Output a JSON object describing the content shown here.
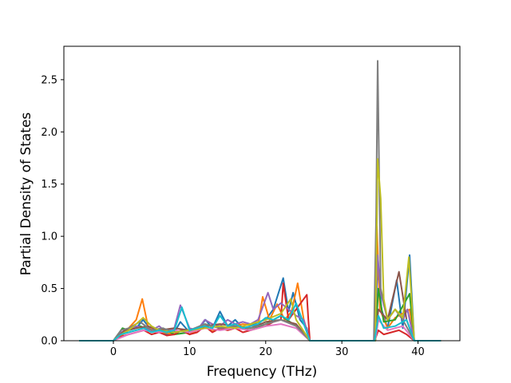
{
  "chart_data": {
    "type": "line",
    "title": "",
    "xlabel": "Frequency (THz)",
    "ylabel": "Partial Density of States",
    "xlim": [
      -6.5,
      45.5
    ],
    "ylim": [
      0,
      2.82
    ],
    "xticks": [
      0,
      10,
      20,
      30,
      40
    ],
    "xtick_labels": [
      "0",
      "10",
      "20",
      "30",
      "40"
    ],
    "yticks": [
      0,
      0.5,
      1.0,
      1.5,
      2.0,
      2.5
    ],
    "ytick_labels": [
      "0.0",
      "0.5",
      "1.0",
      "1.5",
      "2.0",
      "2.5"
    ],
    "grid": false,
    "legend": "none",
    "series": [
      {
        "color": "#1f77b4",
        "x": [
          -4.5,
          0,
          1,
          2,
          3,
          3.9,
          5,
          6,
          7,
          8,
          8.8,
          10,
          11,
          12.1,
          13,
          14,
          15,
          16,
          17,
          18,
          19,
          20,
          21,
          22.3,
          23,
          23.6,
          24.5,
          25.4,
          25.8,
          30,
          34.3,
          34.7,
          35.2,
          36,
          37.2,
          38,
          38.9,
          39.5,
          43
        ],
        "y": [
          0,
          0,
          0.06,
          0.1,
          0.12,
          0.2,
          0.1,
          0.08,
          0.06,
          0.08,
          0.18,
          0.08,
          0.1,
          0.2,
          0.12,
          0.28,
          0.14,
          0.2,
          0.12,
          0.14,
          0.18,
          0.2,
          0.3,
          0.6,
          0.28,
          0.46,
          0.2,
          0.12,
          0,
          0,
          0,
          0.7,
          0.3,
          0.12,
          0.58,
          0.12,
          0.82,
          0,
          0
        ]
      },
      {
        "color": "#ff7f0e",
        "x": [
          -4.5,
          0,
          1,
          2,
          3,
          3.8,
          4.6,
          5.5,
          6.5,
          8,
          8.8,
          10,
          12,
          13,
          15,
          17,
          19,
          19.6,
          20.5,
          21.5,
          22.5,
          23.4,
          24.2,
          25,
          25.8,
          30,
          34.3,
          34.6,
          35,
          36,
          37,
          38.9,
          39.5,
          43
        ],
        "y": [
          0,
          0,
          0.04,
          0.12,
          0.2,
          0.4,
          0.12,
          0.1,
          0.08,
          0.06,
          0.1,
          0.06,
          0.14,
          0.1,
          0.12,
          0.16,
          0.14,
          0.42,
          0.2,
          0.35,
          0.2,
          0.28,
          0.55,
          0.2,
          0,
          0,
          0,
          1.1,
          0.3,
          0.12,
          0.22,
          0.3,
          0,
          0
        ]
      },
      {
        "color": "#2ca02c",
        "x": [
          -4.5,
          0,
          1.2,
          2,
          3.5,
          5,
          6.5,
          8,
          10,
          12,
          14,
          16,
          18,
          20,
          22,
          24,
          25.8,
          30,
          34.4,
          34.8,
          35.5,
          37,
          38.9,
          39.5,
          43
        ],
        "y": [
          0,
          0,
          0.12,
          0.1,
          0.14,
          0.1,
          0.12,
          0.06,
          0.08,
          0.16,
          0.12,
          0.14,
          0.1,
          0.16,
          0.24,
          0.14,
          0,
          0,
          0,
          0.5,
          0.18,
          0.2,
          0.45,
          0,
          0
        ]
      },
      {
        "color": "#d62728",
        "x": [
          -4.5,
          0,
          1,
          2,
          3,
          4,
          5,
          6,
          7,
          8,
          9,
          10,
          11,
          12,
          13,
          14,
          15,
          16,
          17,
          18,
          19,
          20,
          21,
          22,
          22.3,
          23,
          24,
          25.4,
          25.6,
          25.8,
          30,
          34.3,
          34.8,
          35.5,
          36.5,
          37.5,
          38.5,
          39.5,
          43
        ],
        "y": [
          0,
          0,
          0.04,
          0.06,
          0.08,
          0.1,
          0.06,
          0.08,
          0.05,
          0.06,
          0.1,
          0.06,
          0.08,
          0.14,
          0.08,
          0.12,
          0.1,
          0.12,
          0.08,
          0.1,
          0.12,
          0.14,
          0.18,
          0.2,
          0.55,
          0.2,
          0.3,
          0.44,
          0.2,
          0,
          0,
          0,
          0.1,
          0.06,
          0.08,
          0.1,
          0.06,
          0,
          0
        ]
      },
      {
        "color": "#9467bd",
        "x": [
          -4.5,
          0,
          1,
          2,
          3,
          4,
          5,
          6,
          7,
          8,
          8.8,
          10,
          11,
          12,
          13,
          14,
          15,
          16,
          17,
          18,
          19,
          20.3,
          21,
          22,
          23,
          24,
          25,
          25.8,
          30,
          34.3,
          34.7,
          35.1,
          36,
          37,
          38,
          38.6,
          39.5,
          43
        ],
        "y": [
          0,
          0,
          0.08,
          0.1,
          0.14,
          0.12,
          0.1,
          0.14,
          0.08,
          0.12,
          0.34,
          0.12,
          0.1,
          0.2,
          0.16,
          0.14,
          0.2,
          0.16,
          0.18,
          0.16,
          0.2,
          0.46,
          0.3,
          0.36,
          0.3,
          0.24,
          0.2,
          0,
          0,
          0,
          0.82,
          0.46,
          0.2,
          0.3,
          0.2,
          0.3,
          0,
          0
        ]
      },
      {
        "color": "#8c564b",
        "x": [
          -4.5,
          0,
          1.5,
          3,
          4.5,
          6,
          8,
          10,
          12,
          14,
          16,
          18,
          20,
          22,
          24,
          25.8,
          30,
          34.4,
          34.8,
          36,
          37.5,
          38.5,
          39.5,
          43
        ],
        "y": [
          0,
          0,
          0.1,
          0.12,
          0.14,
          0.1,
          0.12,
          0.1,
          0.14,
          0.16,
          0.14,
          0.12,
          0.18,
          0.2,
          0.16,
          0,
          0,
          0,
          0.3,
          0.2,
          0.66,
          0.2,
          0,
          0
        ]
      },
      {
        "color": "#e377c2",
        "x": [
          -4.5,
          0,
          2,
          4,
          6,
          8,
          10,
          12,
          14,
          16,
          18,
          20,
          22,
          24,
          25.8,
          30,
          34.4,
          34.8,
          36,
          38,
          39.5,
          43
        ],
        "y": [
          0,
          0,
          0.06,
          0.1,
          0.08,
          0.1,
          0.08,
          0.12,
          0.1,
          0.12,
          0.1,
          0.14,
          0.16,
          0.12,
          0,
          0,
          0,
          0.2,
          0.1,
          0.14,
          0,
          0
        ]
      },
      {
        "color": "#7f7f7f",
        "x": [
          -4.5,
          0,
          1,
          2,
          3.5,
          5,
          6.5,
          8,
          10,
          12,
          14,
          16,
          18,
          20,
          22,
          24,
          25.8,
          30,
          34.2,
          34.5,
          34.7,
          35.1,
          36,
          37,
          38,
          39.5,
          43
        ],
        "y": [
          0,
          0,
          0.1,
          0.12,
          0.18,
          0.1,
          0.12,
          0.08,
          0.1,
          0.16,
          0.12,
          0.14,
          0.12,
          0.16,
          0.2,
          0.14,
          0,
          0,
          0,
          1.2,
          2.68,
          0.5,
          0.2,
          0.3,
          0.2,
          0,
          0
        ]
      },
      {
        "color": "#bcbd22",
        "x": [
          -4.5,
          0,
          1,
          2,
          3,
          3.9,
          5,
          6,
          8,
          10,
          12,
          14,
          16,
          18,
          20,
          22,
          23.3,
          24,
          25.8,
          30,
          34.4,
          34.7,
          35.1,
          35.5,
          36,
          37,
          38,
          38.8,
          39.5,
          43
        ],
        "y": [
          0,
          0,
          0.06,
          0.1,
          0.16,
          0.22,
          0.14,
          0.1,
          0.08,
          0.1,
          0.12,
          0.14,
          0.12,
          0.16,
          0.2,
          0.26,
          0.4,
          0.2,
          0,
          0,
          0,
          1.74,
          1.36,
          0.4,
          0.2,
          0.3,
          0.22,
          0.8,
          0,
          0
        ]
      },
      {
        "color": "#17becf",
        "x": [
          -4.5,
          0,
          1,
          2,
          3,
          4,
          5,
          6,
          7,
          8,
          9,
          10,
          11,
          12,
          13,
          14,
          15,
          16,
          17,
          18,
          19,
          20,
          21,
          22,
          23,
          24,
          25,
          25.8,
          30,
          34.3,
          34.8,
          35.5,
          37,
          38.5,
          39.5,
          43
        ],
        "y": [
          0,
          0,
          0.06,
          0.08,
          0.1,
          0.12,
          0.08,
          0.1,
          0.08,
          0.1,
          0.32,
          0.1,
          0.12,
          0.14,
          0.12,
          0.24,
          0.14,
          0.16,
          0.12,
          0.14,
          0.16,
          0.22,
          0.2,
          0.24,
          0.2,
          0.36,
          0.16,
          0,
          0,
          0,
          0.24,
          0.12,
          0.14,
          0.2,
          0,
          0
        ]
      }
    ]
  }
}
